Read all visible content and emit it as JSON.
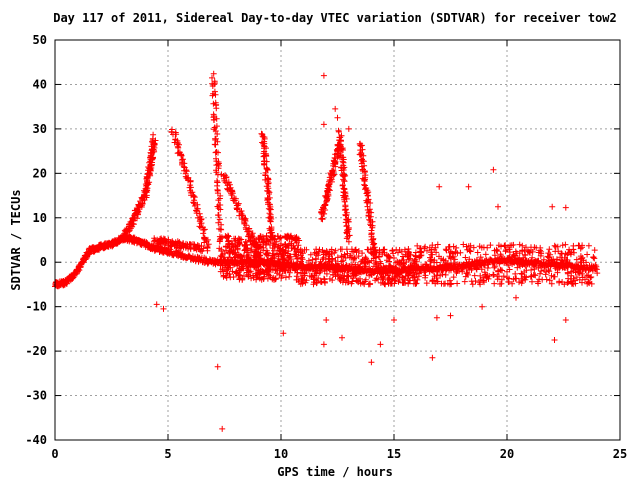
{
  "chart_data": {
    "type": "scatter",
    "title": "Day 117 of 2011, Sidereal Day-to-day VTEC variation (SDTVAR) for receiver tow2",
    "xlabel": "GPS time / hours",
    "ylabel": "SDTVAR / TECUs",
    "xlim": [
      0,
      25
    ],
    "ylim": [
      -40,
      50
    ],
    "x_ticks": [
      0,
      5,
      10,
      15,
      20,
      25
    ],
    "y_ticks": [
      -40,
      -30,
      -20,
      -10,
      0,
      10,
      20,
      30,
      40,
      50
    ],
    "grid": true,
    "marker": "+",
    "color": "#ff0000",
    "series": [
      {
        "trend": [
          [
            0,
            -5
          ],
          [
            0.5,
            -4.5
          ],
          [
            1,
            -2
          ],
          [
            1.5,
            2.5
          ],
          [
            2,
            3.5
          ],
          [
            2.5,
            4
          ],
          [
            3,
            5.5
          ],
          [
            3.5,
            5
          ],
          [
            4,
            4
          ],
          [
            4.5,
            3
          ],
          [
            5,
            2.5
          ],
          [
            6,
            1
          ],
          [
            7,
            0
          ],
          [
            8,
            0
          ],
          [
            9,
            0
          ],
          [
            10,
            -0.5
          ],
          [
            11,
            -1
          ],
          [
            12,
            -1
          ],
          [
            13,
            -1.5
          ],
          [
            14,
            -2
          ],
          [
            15,
            -2
          ],
          [
            16,
            -1.5
          ],
          [
            17,
            -1.5
          ],
          [
            18,
            -1
          ],
          [
            19,
            0
          ],
          [
            20,
            0.5
          ],
          [
            21,
            0
          ],
          [
            22,
            -0.5
          ],
          [
            23,
            -1
          ],
          [
            24,
            -1.5
          ]
        ],
        "spikes": [
          {
            "x": [
              3.0,
              4.0
            ],
            "y": [
              5,
              15
            ]
          },
          {
            "x": [
              4.0,
              4.4
            ],
            "y": [
              15,
              28
            ]
          },
          {
            "x": [
              4.4,
              6.5
            ],
            "y": [
              5,
              3
            ]
          },
          {
            "x": [
              5.2,
              6.8
            ],
            "y": [
              30,
              3
            ]
          },
          {
            "x": [
              7.0,
              7.4
            ],
            "y": [
              42,
              -3
            ]
          },
          {
            "x": [
              7.4,
              9.2
            ],
            "y": [
              20,
              0
            ]
          },
          {
            "x": [
              9.2,
              9.6
            ],
            "y": [
              29,
              5
            ]
          },
          {
            "x": [
              11.8,
              12.6
            ],
            "y": [
              10,
              27
            ]
          },
          {
            "x": [
              12.6,
              13.0
            ],
            "y": [
              29,
              5
            ]
          },
          {
            "x": [
              13.5,
              14.2
            ],
            "y": [
              27,
              0
            ]
          }
        ],
        "outliers": [
          [
            11.9,
            42
          ],
          [
            12.4,
            34.5
          ],
          [
            7.2,
            -23.5
          ],
          [
            7.4,
            -37.5
          ],
          [
            11.9,
            -18.5
          ],
          [
            12.7,
            -17
          ],
          [
            14.4,
            -18.5
          ],
          [
            16.7,
            -21.5
          ],
          [
            19.4,
            20.8
          ],
          [
            17.0,
            17
          ],
          [
            18.3,
            17
          ],
          [
            19.6,
            12.5
          ],
          [
            22.0,
            12.5
          ],
          [
            22.6,
            12.3
          ],
          [
            22.1,
            -17.5
          ],
          [
            22.6,
            -13
          ],
          [
            10.1,
            -16
          ],
          [
            14.0,
            -22.5
          ],
          [
            4.5,
            -9.5
          ],
          [
            4.8,
            -10.5
          ],
          [
            11.9,
            31
          ],
          [
            12.5,
            32.5
          ],
          [
            13.0,
            30
          ],
          [
            12.0,
            -13
          ],
          [
            15.0,
            -13
          ],
          [
            16.9,
            -12.5
          ],
          [
            17.5,
            -12
          ],
          [
            18.9,
            -10
          ],
          [
            20.4,
            -8
          ]
        ],
        "dense_blocks": [
          {
            "x": [
              7.5,
              10.8
            ],
            "y": [
              -4,
              6
            ]
          },
          {
            "x": [
              10.8,
              16
            ],
            "y": [
              -5,
              3
            ]
          },
          {
            "x": [
              16,
              24
            ],
            "y": [
              -5,
              4
            ]
          }
        ]
      }
    ]
  }
}
